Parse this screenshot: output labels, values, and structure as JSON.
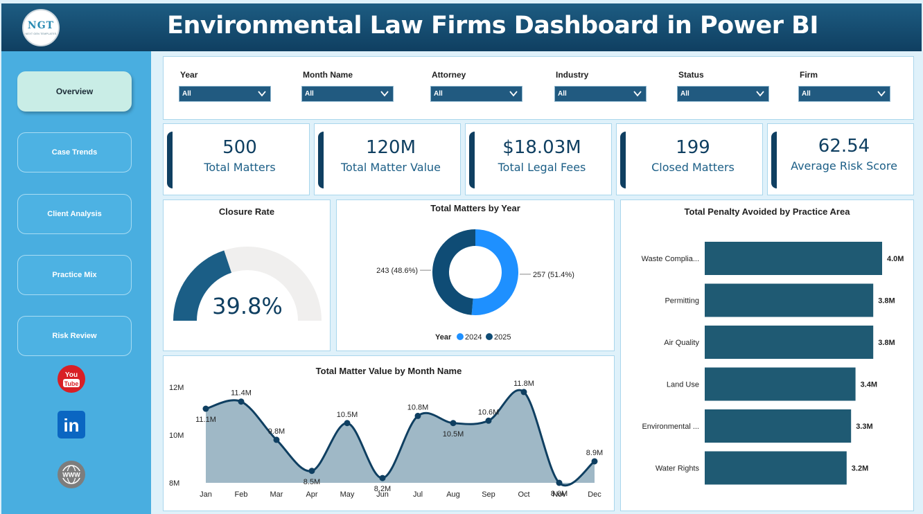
{
  "header": {
    "title": "Environmental Law Firms Dashboard in Power BI",
    "logo_text": "NGT",
    "logo_sub": "NEXT GEN TEMPLATES"
  },
  "sidebar": {
    "items": [
      {
        "label": "Overview",
        "active": true
      },
      {
        "label": "Case Trends",
        "active": false
      },
      {
        "label": "Client Analysis",
        "active": false
      },
      {
        "label": "Practice Mix",
        "active": false
      },
      {
        "label": "Risk Review",
        "active": false
      }
    ],
    "social": [
      {
        "icon": "youtube-icon",
        "text": "You Tube"
      },
      {
        "icon": "linkedin-icon",
        "text": "in"
      },
      {
        "icon": "website-icon",
        "text": "WWW"
      }
    ]
  },
  "filters": [
    {
      "label": "Year",
      "value": "All"
    },
    {
      "label": "Month Name",
      "value": "All"
    },
    {
      "label": "Attorney",
      "value": "All"
    },
    {
      "label": "Industry",
      "value": "All"
    },
    {
      "label": "Status",
      "value": "All"
    },
    {
      "label": "Firm",
      "value": "All"
    }
  ],
  "kpis": [
    {
      "value": "500",
      "label": "Total Matters"
    },
    {
      "value": "120M",
      "label": "Total Matter Value"
    },
    {
      "value": "$18.03M",
      "label": "Total Legal Fees"
    },
    {
      "value": "199",
      "label": "Closed Matters"
    },
    {
      "value": "62.54",
      "label": "Average Risk Score"
    }
  ],
  "colors": {
    "dark": "#0f3f61",
    "accent": "#1b5e86",
    "bar": "#1f5a73",
    "donut_2024": "#1e90ff",
    "donut_2025": "#0f4c75",
    "area_fill": "#9fb8c6",
    "gauge_track": "#f0efee"
  },
  "chart_data": [
    {
      "type": "gauge",
      "title": "Closure Rate",
      "value": 39.8,
      "value_label": "39.8%",
      "min": 0,
      "max": 100
    },
    {
      "type": "pie",
      "title": "Total Matters by Year",
      "legend_title": "Year",
      "legend_position": "bottom",
      "slices": [
        {
          "name": "2024",
          "value": 257,
          "label": "257 (51.4%)"
        },
        {
          "name": "2025",
          "value": 243,
          "label": "243 (48.6%)"
        }
      ]
    },
    {
      "type": "bar",
      "orientation": "horizontal",
      "title": "Total Penalty Avoided by Practice Area",
      "categories": [
        "Waste Complia...",
        "Permitting",
        "Air Quality",
        "Land Use",
        "Environmental ...",
        "Water Rights"
      ],
      "values": [
        4.0,
        3.8,
        3.8,
        3.4,
        3.3,
        3.2
      ],
      "labels": [
        "4.0M",
        "3.8M",
        "3.8M",
        "3.4M",
        "3.3M",
        "3.2M"
      ],
      "xlim": [
        0,
        4.0
      ]
    },
    {
      "type": "area",
      "title": "Total Matter Value by Month Name",
      "categories": [
        "Jan",
        "Feb",
        "Mar",
        "Apr",
        "May",
        "Jun",
        "Jul",
        "Aug",
        "Sep",
        "Oct",
        "Nov",
        "Dec"
      ],
      "values": [
        11.1,
        11.4,
        9.8,
        8.5,
        10.5,
        8.2,
        10.8,
        10.5,
        10.6,
        11.8,
        8.0,
        8.9
      ],
      "labels": [
        "11.1M",
        "11.4M",
        "9.8M",
        "8.5M",
        "10.5M",
        "8.2M",
        "10.8M",
        "10.5M",
        "10.6M",
        "11.8M",
        "8.0M",
        "8.9M"
      ],
      "ylim": [
        8,
        12
      ],
      "yticks": [
        "8M",
        "10M",
        "12M"
      ]
    }
  ]
}
